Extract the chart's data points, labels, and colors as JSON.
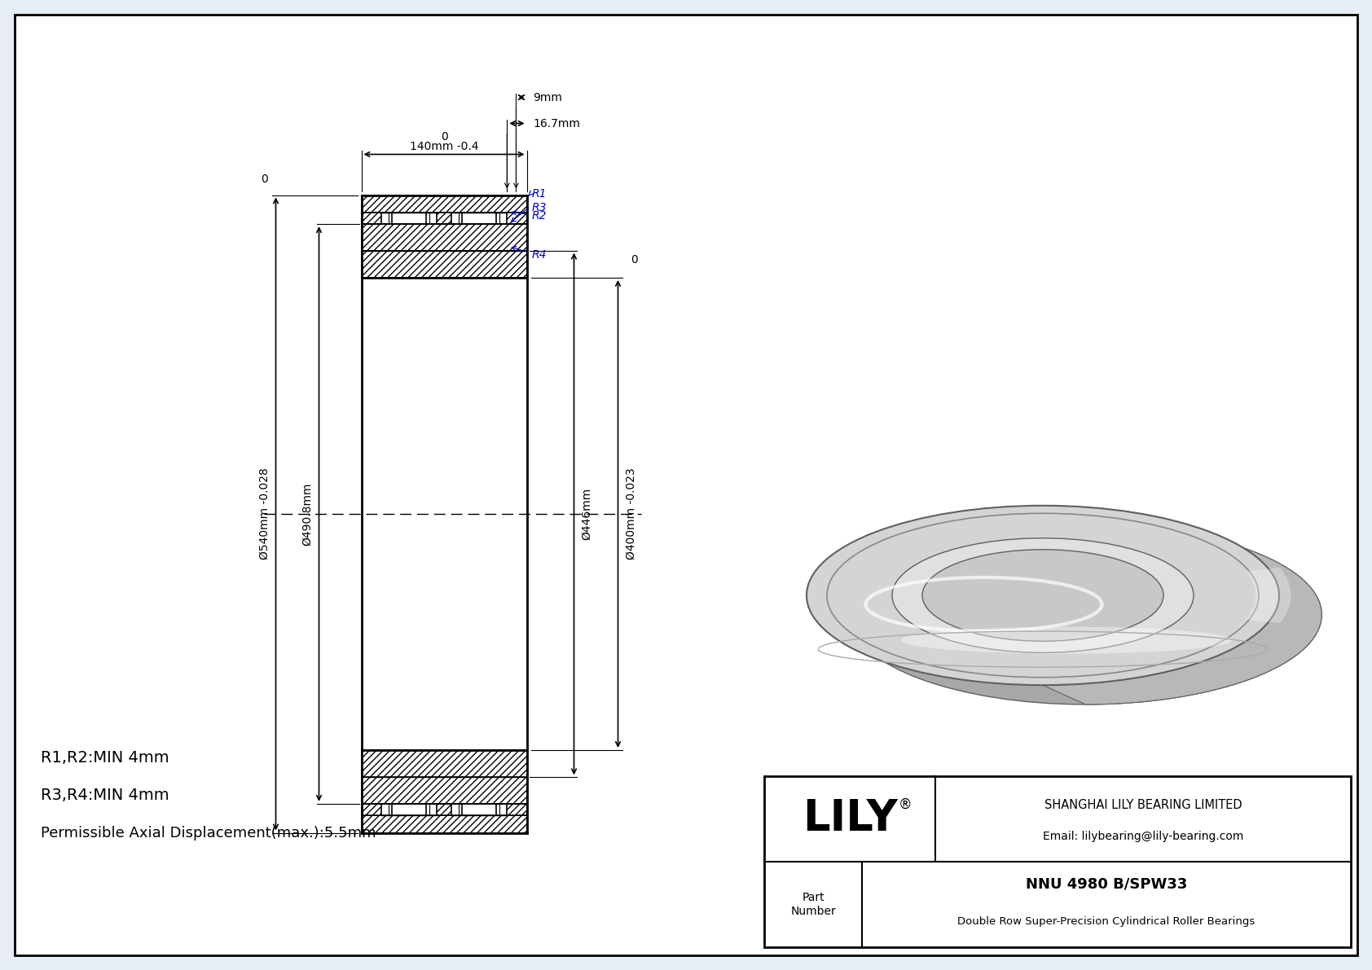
{
  "bg_color": "#e8eef5",
  "drawing_bg": "#ffffff",
  "title": "NNU 4980 B/SPW33",
  "subtitle": "Double Row Super-Precision Cylindrical Roller Bearings",
  "company": "SHANGHAI LILY BEARING LIMITED",
  "email": "Email: lilybearing@lily-bearing.com",
  "part_label": "Part\nNumber",
  "dim_outer": "Ø540mm -0.028",
  "dim_outer_0": "0",
  "dim_inner_ring": "Ø490.8mm",
  "dim_bore": "Ø400mm -0.023",
  "dim_bore_0": "0",
  "dim_bore2": "Ø446mm",
  "dim_width": "140mm -0.4",
  "dim_width_0": "0",
  "dim_16": "16.7mm",
  "dim_9": "9mm",
  "r_labels": [
    "R1",
    "R2",
    "R3",
    "R4"
  ],
  "r_color": "#0000cc",
  "note1": "R1,R2:MIN 4mm",
  "note2": "R3,R4:MIN 4mm",
  "note3": "Permissible Axial Displacement(max.):5.5mm",
  "line_color": "#000000"
}
